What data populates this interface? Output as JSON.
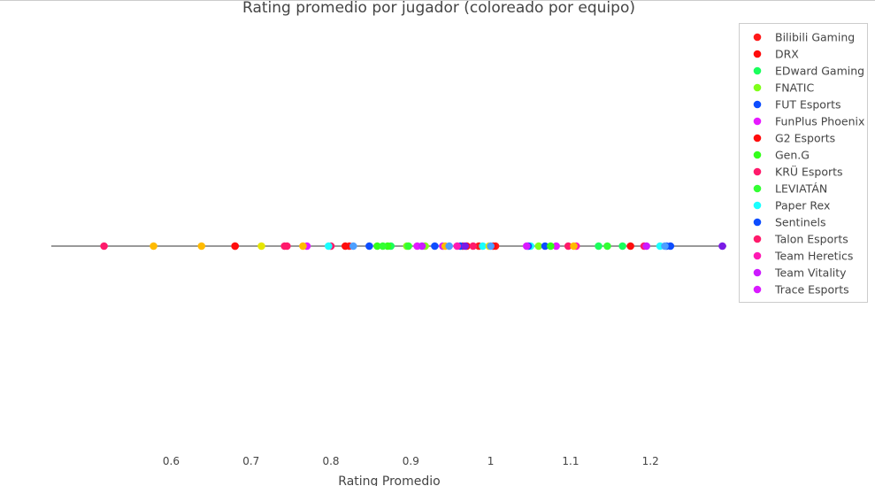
{
  "chart_data": {
    "type": "scatter",
    "title": "Rating promedio por jugador (coloreado por equipo)",
    "xlabel": "Rating Promedio",
    "ylabel": "",
    "xlim": [
      0.45,
      1.295
    ],
    "x_ticks": [
      0.6,
      0.7,
      0.8,
      0.9,
      1,
      1.1,
      1.2
    ],
    "x_tick_labels": [
      "0.6",
      "0.7",
      "0.8",
      "0.9",
      "1",
      "1.1",
      "1.2"
    ],
    "grid": false,
    "legend_position": "right",
    "series": [
      {
        "name": "Bilibili Gaming",
        "color": "#ff1a1a",
        "values": [
          0.68,
          0.823,
          0.985,
          1.006
        ]
      },
      {
        "name": "DRX",
        "color": "#ff0d0d",
        "values": [
          0.68,
          0.965,
          1.175
        ]
      },
      {
        "name": "EDward Gaming",
        "color": "#1aff5c",
        "values": [
          0.875,
          1.135,
          1.165
        ]
      },
      {
        "name": "FNATIC",
        "color": "#80ff1a",
        "values": [
          0.895,
          0.918,
          1.06
        ]
      },
      {
        "name": "FUT Esports",
        "color": "#0d4dff",
        "values": [
          0.848,
          0.93,
          1.068,
          1.22
        ]
      },
      {
        "name": "FunPlus Phoenix",
        "color": "#e61aff",
        "values": [
          0.77,
          0.908,
          1.082
        ]
      },
      {
        "name": "G2 Esports",
        "color": "#ff0d0d",
        "values": [
          0.818,
          0.97,
          1.003
        ]
      },
      {
        "name": "Gen.G",
        "color": "#33ff1a",
        "values": [
          0.858,
          0.871,
          1.075
        ]
      },
      {
        "name": "KRÜ Esports",
        "color": "#ff1a6b",
        "values": [
          0.516,
          0.745,
          0.8,
          1.192
        ]
      },
      {
        "name": "LEVIATÁN",
        "color": "#33ff33",
        "values": [
          0.865,
          0.897,
          1.146
        ]
      },
      {
        "name": "Paper Rex",
        "color": "#1affff",
        "values": [
          0.797,
          0.99,
          1.05,
          1.212
        ]
      },
      {
        "name": "Sentinels",
        "color": "#0d4dff",
        "values": [
          0.962,
          1.047,
          1.225
        ]
      },
      {
        "name": "Talon Esports",
        "color": "#ff1a6b",
        "values": [
          0.742,
          0.978,
          1.097
        ]
      },
      {
        "name": "Team Heretics",
        "color": "#ff1ab3",
        "values": [
          0.958,
          1.107
        ]
      },
      {
        "name": "Team Vitality",
        "color": "#cc1aff",
        "values": [
          0.914,
          1.195
        ]
      },
      {
        "name": "Trace Esports",
        "color": "#d91aff",
        "values": [
          0.94,
          1.045
        ]
      },
      {
        "name": "",
        "color": "#ffbb00",
        "values": [
          0.578,
          0.638,
          0.765,
          0.943,
          1.104
        ]
      },
      {
        "name": "",
        "color": "#e6e600",
        "values": [
          0.713,
          0.998
        ]
      },
      {
        "name": "",
        "color": "#4d9fff",
        "values": [
          0.828,
          0.948,
          1.0,
          1.218
        ]
      },
      {
        "name": "",
        "color": "#7a1ae6",
        "values": [
          0.968,
          1.29
        ]
      }
    ]
  }
}
